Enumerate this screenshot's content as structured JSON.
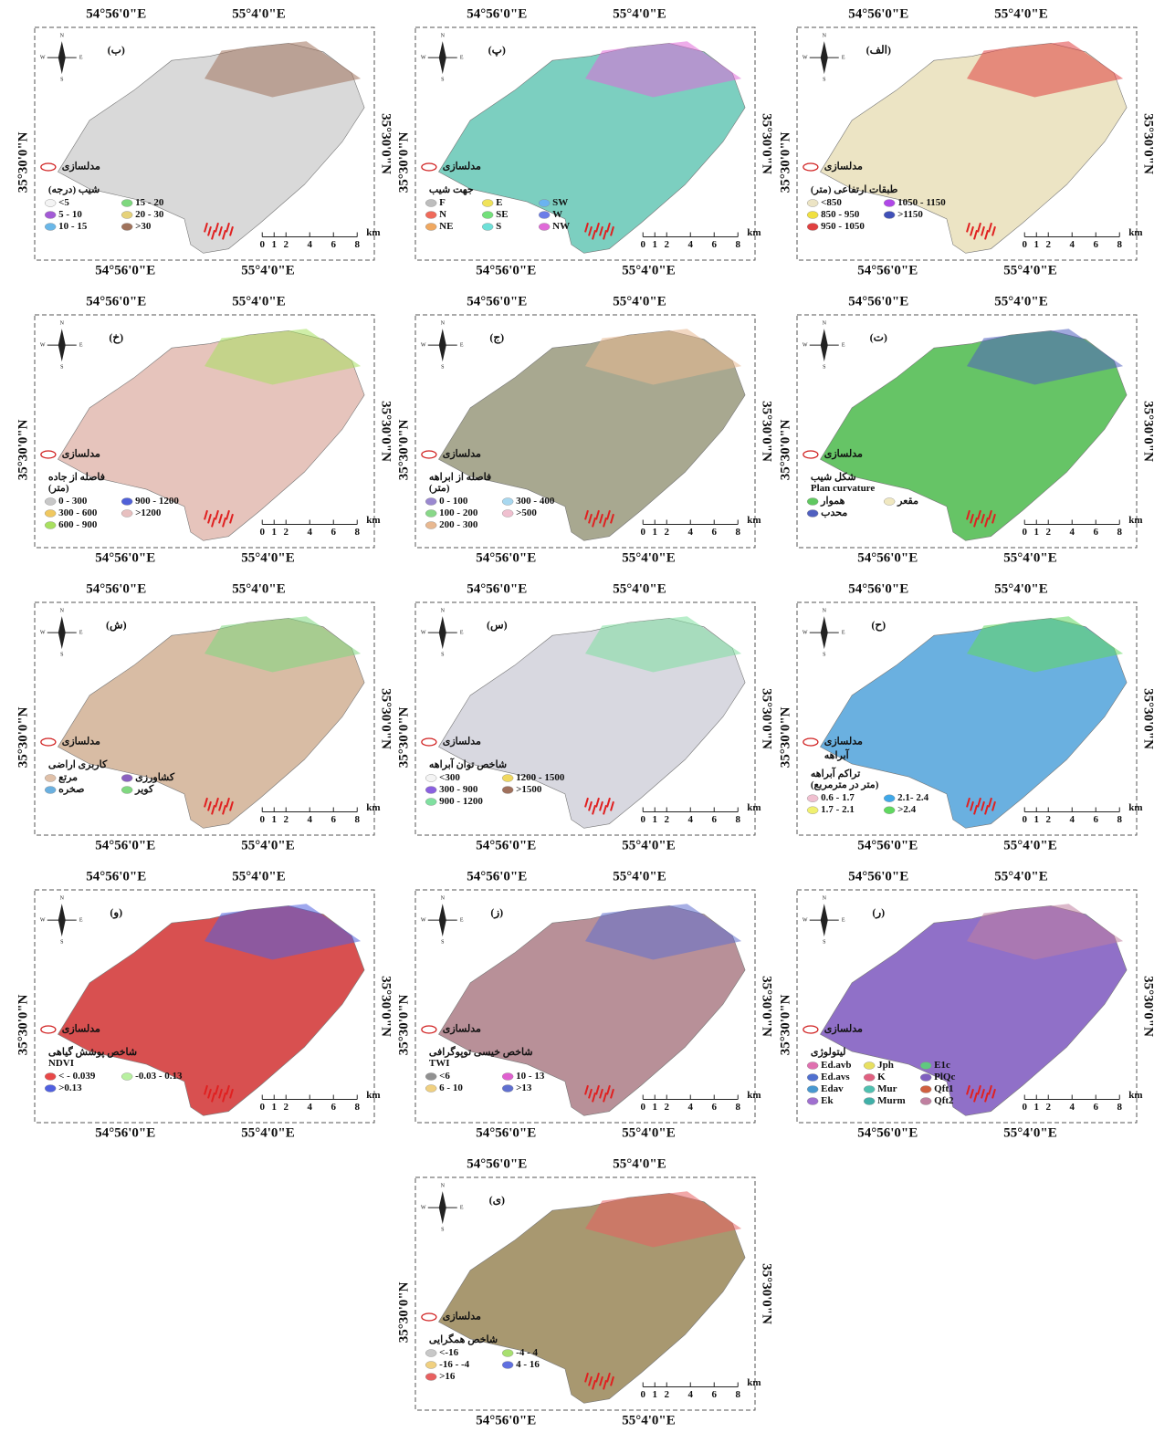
{
  "common": {
    "x_labels": [
      "54°56'0\"E",
      "55°4'0\"E"
    ],
    "y_label": "35°30'0\"N",
    "scale_ticks": [
      "0",
      "1",
      "2",
      "4",
      "6",
      "8"
    ],
    "scale_unit": "km",
    "model_label": "مدلسازی",
    "compass": [
      "N",
      "E",
      "S",
      "W"
    ]
  },
  "panels": [
    {
      "label": "(ب)",
      "legend_title": "شیب (درجه)",
      "legend_cols": 2,
      "items": [
        {
          "label": "<5",
          "color": "#f4f4f4"
        },
        {
          "label": "15 - 20",
          "color": "#7ed87e"
        },
        {
          "label": "5 - 10",
          "color": "#a35ad6"
        },
        {
          "label": "20 - 30",
          "color": "#e6d27a"
        },
        {
          "label": "10 - 15",
          "color": "#6ab7e8"
        },
        {
          "label": ">30",
          "color": "#a0735c"
        }
      ]
    },
    {
      "label": "(پ)",
      "legend_title": "جهت شیب",
      "legend_cols": 3,
      "items": [
        {
          "label": "F",
          "color": "#bdbdbd"
        },
        {
          "label": "E",
          "color": "#f0e35a"
        },
        {
          "label": "SW",
          "color": "#6ab3f0"
        },
        {
          "label": "N",
          "color": "#f06a5a"
        },
        {
          "label": "SE",
          "color": "#72e07a"
        },
        {
          "label": "W",
          "color": "#6c7de8"
        },
        {
          "label": "NE",
          "color": "#f0a860"
        },
        {
          "label": "S",
          "color": "#6ee0d8"
        },
        {
          "label": "NW",
          "color": "#e06ad8"
        }
      ]
    },
    {
      "label": "(الف)",
      "legend_title": "طبقات ارتفاعی (متر)",
      "legend_cols": 2,
      "items": [
        {
          "label": "<850",
          "color": "#ece4c4"
        },
        {
          "label": "1050 - 1150",
          "color": "#b048e8"
        },
        {
          "label": "850 - 950",
          "color": "#f0e040"
        },
        {
          "label": ">1150",
          "color": "#4050b8"
        },
        {
          "label": "950 - 1050",
          "color": "#e04040"
        }
      ]
    },
    {
      "label": "(خ)",
      "legend_title": "فاصله از جاده",
      "legend_sub": "(متر)",
      "legend_cols": 2,
      "items": [
        {
          "label": "0 - 300",
          "color": "#c8c8c8"
        },
        {
          "label": "900 - 1200",
          "color": "#5060d8"
        },
        {
          "label": "300 - 600",
          "color": "#f0c860"
        },
        {
          "label": ">1200",
          "color": "#e8c0c0"
        },
        {
          "label": "600 - 900",
          "color": "#a8e060"
        }
      ]
    },
    {
      "label": "(ج)",
      "legend_title": "فاصله از ابراهه",
      "legend_sub": "(متر)",
      "legend_cols": 2,
      "items": [
        {
          "label": "0 - 100",
          "color": "#9a88d0"
        },
        {
          "label": "300 - 400",
          "color": "#a8d8f0"
        },
        {
          "label": "100 - 200",
          "color": "#88d888"
        },
        {
          "label": ">500",
          "color": "#f0c0d0"
        },
        {
          "label": "200 - 300",
          "color": "#e8b890"
        }
      ]
    },
    {
      "label": "(ت)",
      "legend_title": "شکل شیب",
      "legend_sub": "Plan curvature",
      "legend_cols": 2,
      "items": [
        {
          "label": "هموار",
          "color": "#60c860"
        },
        {
          "label": "مقعر",
          "color": "#f0e8c0"
        },
        {
          "label": "محدب",
          "color": "#5060c0"
        }
      ]
    },
    {
      "label": "(ش)",
      "legend_title": "کاربری اراضی",
      "legend_cols": 2,
      "items": [
        {
          "label": "مرتع",
          "color": "#e0c0a8"
        },
        {
          "label": "کشاورزی",
          "color": "#8a60c0"
        },
        {
          "label": "صخره",
          "color": "#6ab0e0"
        },
        {
          "label": "کویر",
          "color": "#80d880"
        }
      ]
    },
    {
      "label": "(س)",
      "legend_title": "شاخص توان آبراهه",
      "legend_cols": 2,
      "items": [
        {
          "label": "<300",
          "color": "#f4f4f4"
        },
        {
          "label": "1200 - 1500",
          "color": "#f0d860"
        },
        {
          "label": "300 - 900",
          "color": "#8a60e0"
        },
        {
          "label": ">1500",
          "color": "#a0705c"
        },
        {
          "label": "900 - 1200",
          "color": "#80e0a0"
        }
      ]
    },
    {
      "label": "(ح)",
      "extra_label": "آبراهه",
      "legend_title": "تراکم آبراهه",
      "legend_sub": "(متر در مترمربع)",
      "legend_cols": 2,
      "items": [
        {
          "label": "0.6 - 1.7",
          "color": "#f0c0d0"
        },
        {
          "label": "2.1- 2.4",
          "color": "#40a8e8"
        },
        {
          "label": "1.7 - 2.1",
          "color": "#f0f070"
        },
        {
          "label": ">2.4",
          "color": "#60d860"
        }
      ]
    },
    {
      "label": "(و)",
      "legend_title": "شاخص پوشش گیاهی",
      "legend_sub": "NDVI",
      "legend_cols": 2,
      "items": [
        {
          "label": "< - 0.039",
          "color": "#e84848"
        },
        {
          "label": "-0.03 - 0.13",
          "color": "#b8f0a0"
        },
        {
          "label": ">0.13",
          "color": "#5060e0"
        }
      ]
    },
    {
      "label": "(ز)",
      "legend_title": "شاخص خیسی توپوگرافی",
      "legend_sub": "TWI",
      "legend_cols": 2,
      "items": [
        {
          "label": "<6",
          "color": "#909090"
        },
        {
          "label": "10 - 13",
          "color": "#e060d0"
        },
        {
          "label": "6 - 10",
          "color": "#f0d080"
        },
        {
          "label": ">13",
          "color": "#6070d0"
        }
      ]
    },
    {
      "label": "(ر)",
      "legend_title": "لیتولوژی",
      "legend_cols": 3,
      "items": [
        {
          "label": "Ed.avb",
          "color": "#e070b0"
        },
        {
          "label": "Jph",
          "color": "#e8e060"
        },
        {
          "label": "E1c",
          "color": "#60c880"
        },
        {
          "label": "Ed.avs",
          "color": "#5070d0"
        },
        {
          "label": "K",
          "color": "#e06080"
        },
        {
          "label": "PlQc",
          "color": "#8060c0"
        },
        {
          "label": "Edav",
          "color": "#4898d0"
        },
        {
          "label": "Mur",
          "color": "#50c0b0"
        },
        {
          "label": "Qft1",
          "color": "#d06040"
        },
        {
          "label": "Ek",
          "color": "#a070d0"
        },
        {
          "label": "Murm",
          "color": "#40b0a8"
        },
        {
          "label": "Qft2",
          "color": "#c080a0"
        }
      ]
    },
    {
      "label": "(ی)",
      "legend_title": "شاخص همگرایی",
      "legend_cols": 2,
      "items": [
        {
          "label": "<-16",
          "color": "#c8c8c8"
        },
        {
          "label": "-4 - 4",
          "color": "#a8e070"
        },
        {
          "label": "-16 - -4",
          "color": "#f0d080"
        },
        {
          "label": "4 - 16",
          "color": "#6070e0"
        },
        {
          "label": ">16",
          "color": "#e86060"
        }
      ]
    }
  ]
}
